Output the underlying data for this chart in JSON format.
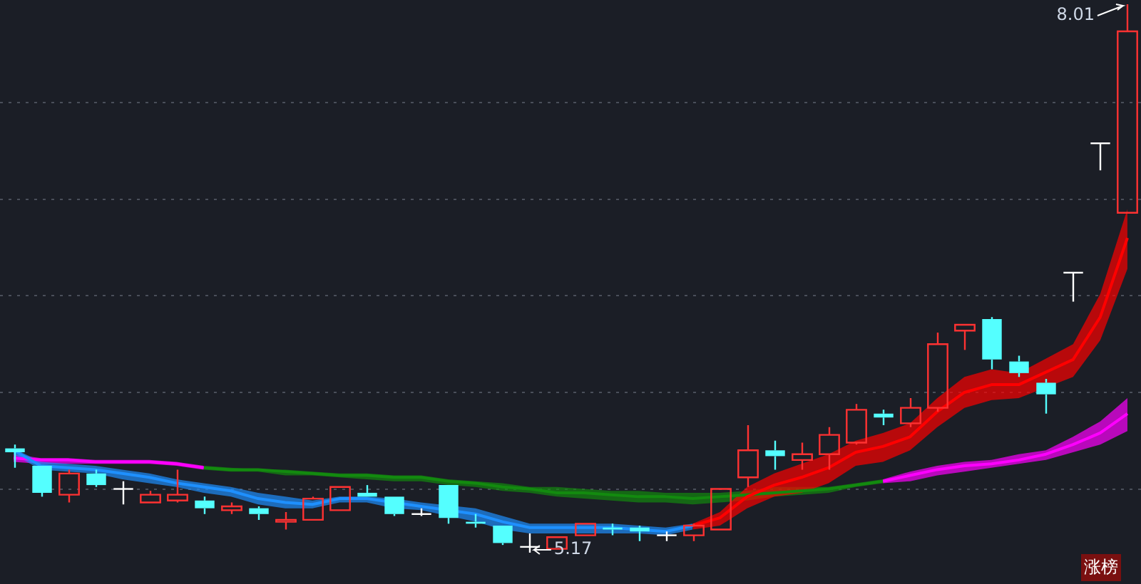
{
  "chart_data": {
    "type": "candlestick",
    "categories": [
      null,
      null,
      null,
      null,
      null,
      null,
      null,
      null,
      null,
      null,
      null,
      null,
      null,
      null,
      null,
      null,
      null,
      null,
      null,
      null,
      null,
      null,
      null,
      null,
      null,
      null,
      null,
      null,
      null,
      null,
      null,
      null,
      null,
      null,
      null,
      null,
      null,
      null,
      null,
      null,
      null,
      null
    ],
    "ohlc": [
      [
        5.71,
        5.73,
        5.61,
        5.69
      ],
      [
        5.62,
        5.62,
        5.46,
        5.48
      ],
      [
        5.47,
        5.6,
        5.43,
        5.58
      ],
      [
        5.58,
        5.6,
        5.51,
        5.52
      ],
      [
        5.5,
        5.54,
        5.42,
        5.5
      ],
      [
        5.43,
        5.49,
        5.43,
        5.47
      ],
      [
        5.44,
        5.6,
        5.43,
        5.47
      ],
      [
        5.44,
        5.46,
        5.37,
        5.4
      ],
      [
        5.39,
        5.43,
        5.37,
        5.41
      ],
      [
        5.4,
        5.41,
        5.34,
        5.37
      ],
      [
        5.33,
        5.38,
        5.29,
        5.34
      ],
      [
        5.34,
        5.46,
        5.34,
        5.45
      ],
      [
        5.39,
        5.51,
        5.39,
        5.51
      ],
      [
        5.48,
        5.52,
        5.46,
        5.46
      ],
      [
        5.46,
        5.46,
        5.36,
        5.37
      ],
      [
        5.37,
        5.4,
        5.36,
        5.37
      ],
      [
        5.52,
        5.52,
        5.32,
        5.35
      ],
      [
        5.33,
        5.37,
        5.3,
        5.32
      ],
      [
        5.31,
        5.31,
        5.21,
        5.22
      ],
      [
        5.2,
        5.27,
        5.17,
        5.2
      ],
      [
        5.19,
        5.25,
        5.19,
        5.25
      ],
      [
        5.26,
        5.32,
        5.26,
        5.32
      ],
      [
        5.3,
        5.32,
        5.26,
        5.29
      ],
      [
        5.3,
        5.31,
        5.23,
        5.28
      ],
      [
        5.26,
        5.28,
        5.23,
        5.26
      ],
      [
        5.26,
        5.32,
        5.23,
        5.31
      ],
      [
        5.29,
        5.5,
        5.29,
        5.5
      ],
      [
        5.56,
        5.83,
        5.51,
        5.7
      ],
      [
        5.7,
        5.75,
        5.6,
        5.67
      ],
      [
        5.65,
        5.74,
        5.6,
        5.68
      ],
      [
        5.68,
        5.82,
        5.6,
        5.78
      ],
      [
        5.74,
        5.94,
        5.73,
        5.91
      ],
      [
        5.89,
        5.91,
        5.83,
        5.87
      ],
      [
        5.84,
        5.97,
        5.82,
        5.92
      ],
      [
        5.92,
        6.31,
        5.9,
        6.25
      ],
      [
        6.32,
        6.35,
        6.22,
        6.35
      ],
      [
        6.38,
        6.39,
        6.12,
        6.17
      ],
      [
        6.16,
        6.19,
        6.08,
        6.1
      ],
      [
        6.05,
        6.07,
        5.89,
        5.99
      ],
      [
        6.62,
        6.62,
        6.47,
        6.62
      ],
      [
        7.29,
        7.29,
        7.15,
        7.29
      ],
      [
        6.93,
        8.01,
        6.93,
        7.87
      ]
    ],
    "colors": [
      "#54ffff",
      "#54ffff",
      "#ff3232",
      "#54ffff",
      "#ffffff",
      "#ff3232",
      "#ff3232",
      "#54ffff",
      "#ff3232",
      "#54ffff",
      "#ff3232",
      "#ff3232",
      "#ff3232",
      "#54ffff",
      "#54ffff",
      "#ffffff",
      "#54ffff",
      "#54ffff",
      "#54ffff",
      "#ffffff",
      "#ff3232",
      "#ff3232",
      "#54ffff",
      "#54ffff",
      "#ffffff",
      "#ff3232",
      "#ff3232",
      "#ff3232",
      "#54ffff",
      "#ff3232",
      "#ff3232",
      "#ff3232",
      "#54ffff",
      "#ff3232",
      "#ff3232",
      "#ff3232",
      "#54ffff",
      "#54ffff",
      "#54ffff",
      "#ffffff",
      "#ffffff",
      "#ff3232"
    ],
    "series": [
      {
        "type": "line",
        "color": "#1e90ff",
        "values": [
          5.7,
          5.62,
          5.61,
          5.6,
          5.58,
          5.56,
          5.53,
          5.51,
          5.49,
          5.45,
          5.43,
          5.42,
          5.45,
          5.45,
          5.43,
          5.41,
          null,
          5.37,
          5.33,
          5.3,
          5.3,
          5.3,
          5.3,
          5.29,
          5.28,
          5.31,
          null,
          null,
          null,
          null,
          null,
          null,
          null,
          null,
          null,
          null,
          null,
          null,
          null,
          null,
          null,
          null
        ],
        "upper": [
          5.71,
          5.64,
          5.63,
          5.62,
          5.6,
          5.58,
          5.55,
          5.53,
          5.51,
          5.48,
          5.46,
          5.44,
          5.46,
          5.46,
          5.45,
          5.43,
          null,
          5.4,
          5.36,
          5.32,
          5.32,
          5.32,
          5.32,
          5.31,
          5.3,
          5.32,
          null,
          null,
          null,
          null,
          null,
          null,
          null,
          null,
          null,
          null,
          null,
          null,
          null,
          null,
          null,
          null
        ],
        "lower": [
          5.68,
          5.6,
          5.59,
          5.58,
          5.55,
          5.53,
          5.51,
          5.48,
          5.46,
          5.42,
          5.4,
          5.4,
          5.43,
          5.43,
          5.4,
          5.39,
          null,
          5.33,
          5.29,
          5.27,
          5.27,
          5.27,
          5.27,
          5.27,
          5.26,
          5.29,
          null,
          null,
          null,
          null,
          null,
          null,
          null,
          null,
          null,
          null,
          null,
          null,
          null,
          null,
          null,
          null
        ]
      },
      {
        "type": "line",
        "color": "#ff0000",
        "values": [
          null,
          null,
          null,
          null,
          null,
          null,
          null,
          null,
          null,
          null,
          null,
          null,
          null,
          null,
          null,
          null,
          null,
          null,
          null,
          null,
          null,
          null,
          null,
          null,
          null,
          5.31,
          5.35,
          5.46,
          5.52,
          5.56,
          5.61,
          5.69,
          5.72,
          5.77,
          5.9,
          6.0,
          6.04,
          6.04,
          null,
          6.17,
          6.39,
          6.8
        ],
        "upper": [
          null,
          null,
          null,
          null,
          null,
          null,
          null,
          null,
          null,
          null,
          null,
          null,
          null,
          null,
          null,
          null,
          null,
          null,
          null,
          null,
          null,
          null,
          null,
          null,
          null,
          5.32,
          5.38,
          5.51,
          5.58,
          5.63,
          5.68,
          5.75,
          5.79,
          5.84,
          5.97,
          6.08,
          6.12,
          6.1,
          null,
          6.25,
          6.51,
          6.95
        ],
        "lower": [
          null,
          null,
          null,
          null,
          null,
          null,
          null,
          null,
          null,
          null,
          null,
          null,
          null,
          null,
          null,
          null,
          null,
          null,
          null,
          null,
          null,
          null,
          null,
          null,
          null,
          5.29,
          5.31,
          5.4,
          5.46,
          5.48,
          5.53,
          5.62,
          5.64,
          5.7,
          5.82,
          5.92,
          5.96,
          5.97,
          null,
          6.08,
          6.27,
          6.64
        ]
      },
      {
        "type": "line",
        "color": "#ff00ff",
        "values": [
          5.66,
          5.65,
          5.65,
          5.64,
          5.64,
          5.64,
          5.63,
          5.61,
          null,
          null,
          null,
          null,
          null,
          null,
          null,
          null,
          null,
          null,
          null,
          null,
          null,
          null,
          null,
          null,
          null,
          null,
          null,
          null,
          null,
          null,
          null,
          null,
          null,
          null,
          null,
          null,
          null,
          null,
          null,
          null,
          null,
          null
        ],
        "upper": [
          5.68,
          5.66,
          5.66,
          5.65,
          5.65,
          5.65,
          5.64,
          5.62,
          null,
          null,
          null,
          null,
          null,
          null,
          null,
          null,
          null,
          null,
          null,
          null,
          null,
          null,
          null,
          null,
          null,
          null,
          null,
          null,
          null,
          null,
          null,
          null,
          null,
          null,
          null,
          null,
          null,
          null,
          null,
          null,
          null,
          null
        ],
        "lower": [
          5.64,
          5.63,
          5.63,
          5.63,
          5.63,
          5.63,
          5.62,
          5.6,
          null,
          null,
          null,
          null,
          null,
          null,
          null,
          null,
          null,
          null,
          null,
          null,
          null,
          null,
          null,
          null,
          null,
          null,
          null,
          null,
          null,
          null,
          null,
          null,
          null,
          null,
          null,
          null,
          null,
          null,
          null,
          null,
          null,
          null
        ]
      },
      {
        "type": "line",
        "color": "#138a0f",
        "values": [
          null,
          null,
          null,
          null,
          null,
          null,
          null,
          5.61,
          5.6,
          5.6,
          5.59,
          5.58,
          5.57,
          5.57,
          5.56,
          5.56,
          5.54,
          5.53,
          5.51,
          5.5,
          5.48,
          5.48,
          5.47,
          5.46,
          5.46,
          5.45,
          5.46,
          5.47,
          5.48,
          5.49,
          5.5,
          5.52,
          5.54,
          null,
          null,
          null,
          null,
          null,
          null,
          null,
          null,
          null
        ],
        "upper": [
          null,
          null,
          null,
          null,
          null,
          null,
          null,
          5.62,
          5.61,
          5.6,
          5.6,
          5.59,
          5.58,
          5.58,
          5.57,
          5.57,
          5.55,
          5.54,
          5.53,
          5.51,
          5.51,
          5.5,
          5.49,
          5.49,
          5.48,
          5.48,
          5.48,
          5.49,
          5.51,
          5.51,
          5.51,
          5.53,
          5.55,
          null,
          null,
          null,
          null,
          null,
          null,
          null,
          null,
          null
        ],
        "lower": [
          null,
          null,
          null,
          null,
          null,
          null,
          null,
          5.6,
          5.59,
          5.59,
          5.57,
          5.57,
          5.56,
          5.55,
          5.54,
          5.54,
          5.52,
          5.51,
          5.49,
          5.48,
          5.46,
          5.45,
          5.44,
          5.43,
          5.43,
          5.42,
          5.43,
          5.44,
          5.46,
          5.47,
          5.48,
          5.51,
          5.53,
          null,
          null,
          null,
          null,
          null,
          null,
          null,
          null,
          null
        ]
      },
      {
        "type": "line",
        "color": "#ff00ff",
        "values": [
          null,
          null,
          null,
          null,
          null,
          null,
          null,
          null,
          null,
          null,
          null,
          null,
          null,
          null,
          null,
          null,
          null,
          null,
          null,
          null,
          null,
          null,
          null,
          null,
          null,
          null,
          null,
          null,
          null,
          null,
          null,
          null,
          5.54,
          5.57,
          5.6,
          5.62,
          5.63,
          5.65,
          5.68,
          5.73,
          5.79,
          5.89
        ],
        "upper": [
          null,
          null,
          null,
          null,
          null,
          null,
          null,
          null,
          null,
          null,
          null,
          null,
          null,
          null,
          null,
          null,
          null,
          null,
          null,
          null,
          null,
          null,
          null,
          null,
          null,
          null,
          null,
          null,
          null,
          null,
          null,
          null,
          5.55,
          5.59,
          5.62,
          5.64,
          5.65,
          5.68,
          5.7,
          5.77,
          5.85,
          5.97
        ],
        "lower": [
          null,
          null,
          null,
          null,
          null,
          null,
          null,
          null,
          null,
          null,
          null,
          null,
          null,
          null,
          null,
          null,
          null,
          null,
          null,
          null,
          null,
          null,
          null,
          null,
          null,
          null,
          null,
          null,
          null,
          null,
          null,
          null,
          5.53,
          5.54,
          5.57,
          5.59,
          5.61,
          5.63,
          5.65,
          5.69,
          5.73,
          5.8
        ]
      }
    ],
    "yticks": [
      {
        "value": 5.5,
        "label": null
      },
      {
        "value": 6.0,
        "label": null
      },
      {
        "value": 6.5,
        "label": null
      },
      {
        "value": 7.0,
        "label": null
      },
      {
        "value": 7.5,
        "label": null
      }
    ],
    "grid": "y",
    "annotations": [
      "8.01",
      "5.17",
      "涨榜"
    ]
  }
}
